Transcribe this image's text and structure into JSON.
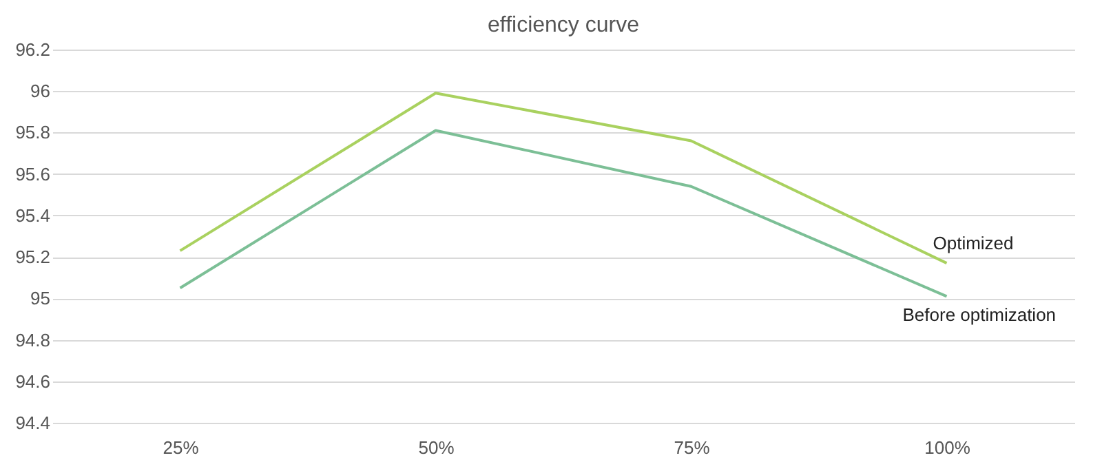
{
  "chart_data": {
    "type": "line",
    "title": "efficiency curve",
    "categories": [
      "25%",
      "50%",
      "75%",
      "100%"
    ],
    "series": [
      {
        "name": "Optimized",
        "color": "#a9d15f",
        "values": [
          95.23,
          95.99,
          95.76,
          95.17
        ]
      },
      {
        "name": "Before optimization",
        "color": "#7cbf96",
        "values": [
          95.05,
          95.81,
          95.54,
          95.01
        ]
      }
    ],
    "ylim": [
      94.4,
      96.2
    ],
    "yticks": [
      94.4,
      94.6,
      94.8,
      95,
      95.2,
      95.4,
      95.6,
      95.8,
      96,
      96.2
    ],
    "grid": "y",
    "legend": false,
    "marker": "none",
    "line_style": "solid"
  }
}
